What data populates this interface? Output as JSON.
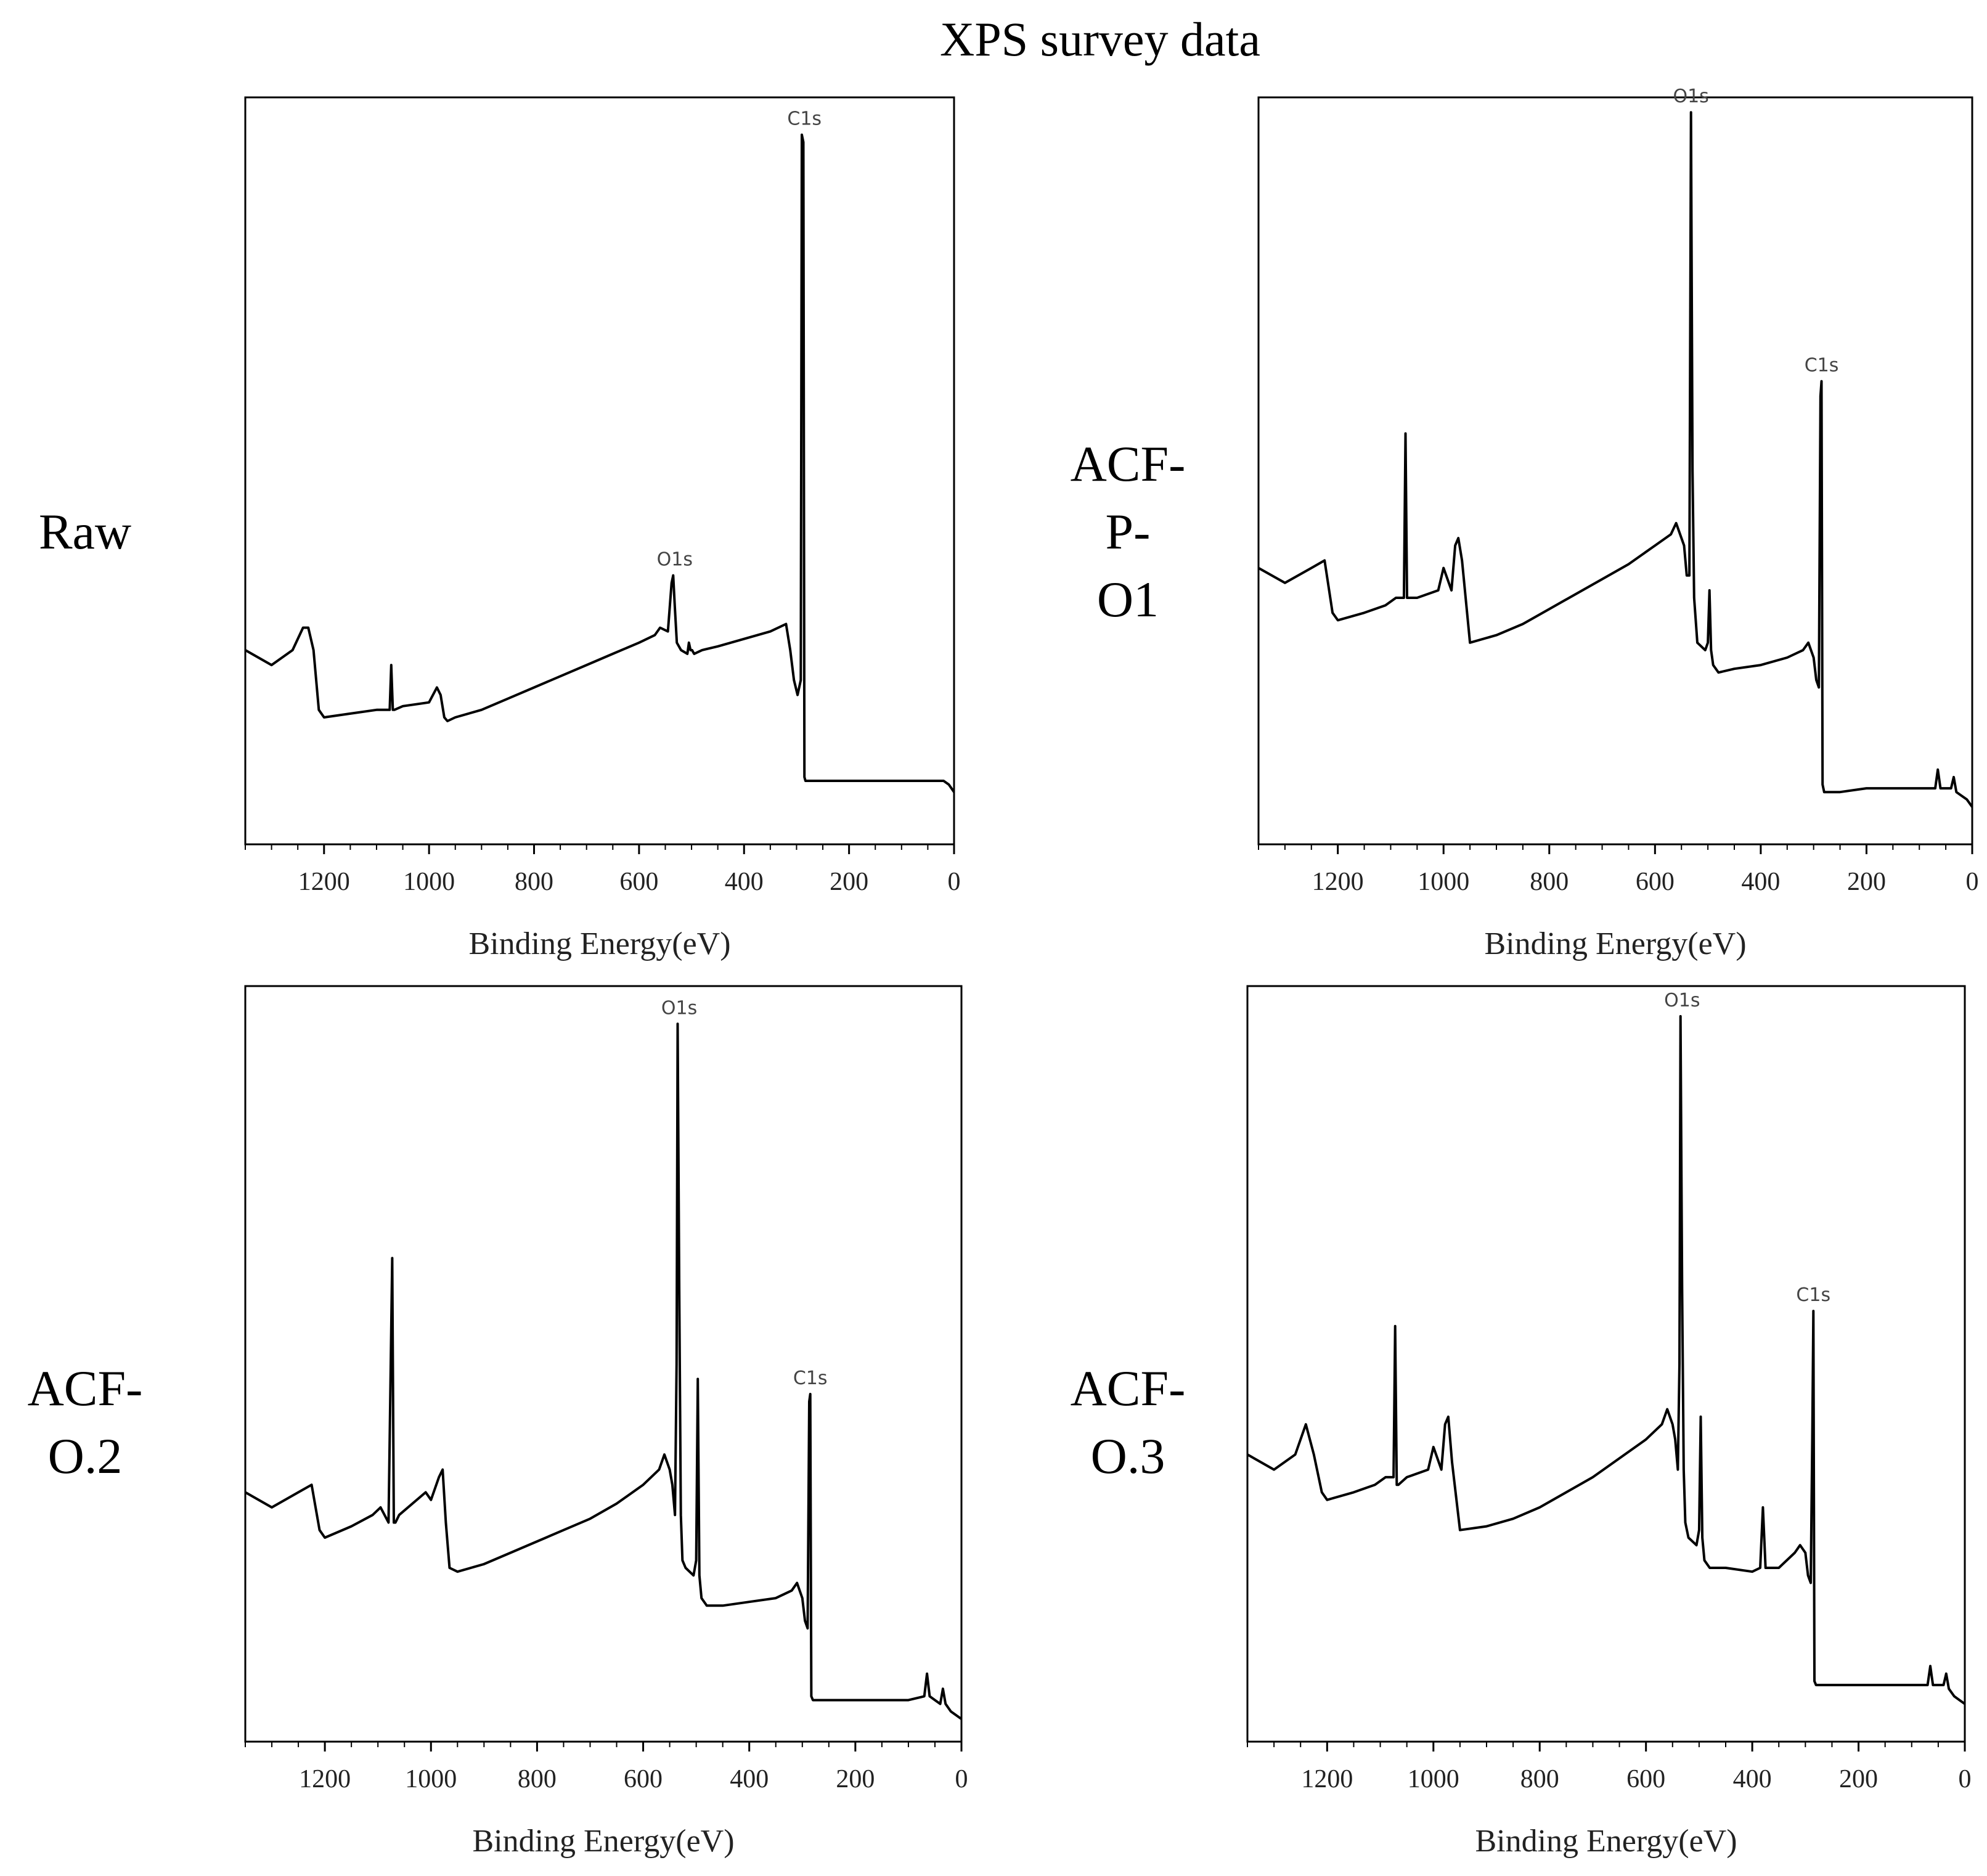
{
  "title": "XPS survey data",
  "chart_data": [
    {
      "type": "line",
      "sample_label": "Raw",
      "xlabel": "Binding Energy(eV)",
      "ylabel": "",
      "xlim": [
        1350,
        0
      ],
      "ylim": [
        0,
        100
      ],
      "x_ticks": [
        1200,
        1000,
        800,
        600,
        400,
        200,
        0
      ],
      "x": [
        1350,
        1300,
        1260,
        1240,
        1230,
        1220,
        1210,
        1200,
        1150,
        1100,
        1075,
        1072,
        1069,
        1066,
        1050,
        1000,
        985,
        978,
        971,
        965,
        950,
        900,
        850,
        800,
        750,
        700,
        650,
        600,
        570,
        560,
        545,
        538,
        535,
        532,
        528,
        520,
        508,
        505,
        502,
        499,
        495,
        480,
        450,
        400,
        350,
        320,
        312,
        305,
        298,
        292,
        290,
        287,
        285,
        283,
        282,
        279,
        270,
        250,
        200,
        150,
        100,
        50,
        20,
        10,
        0
      ],
      "series": [
        {
          "name": "Raw",
          "values": [
            26,
            24,
            26,
            29,
            29,
            26,
            18,
            17,
            17.5,
            18,
            18,
            24,
            18,
            18,
            18.5,
            19,
            21,
            20,
            17,
            16.5,
            17,
            18,
            19.5,
            21,
            22.5,
            24,
            25.5,
            27,
            28,
            29,
            28.5,
            35,
            36,
            32,
            27,
            26,
            25.5,
            27,
            26,
            26,
            25.5,
            26,
            26.5,
            27.5,
            28.5,
            29.5,
            26,
            22,
            20,
            22,
            95,
            94,
            9,
            8.5,
            8.5,
            8.5,
            8.5,
            8.5,
            8.5,
            8.5,
            8.5,
            8.5,
            8.5,
            8,
            7
          ]
        }
      ],
      "annotations": [
        {
          "text": "C1s",
          "x": 285,
          "y": 95
        },
        {
          "text": "O1s",
          "x": 532,
          "y": 36
        }
      ]
    },
    {
      "type": "line",
      "sample_label_lines": [
        "ACF-",
        "P-",
        "O1"
      ],
      "xlabel": "Binding Energy(eV)",
      "ylabel": "",
      "xlim": [
        1350,
        0
      ],
      "ylim": [
        0,
        100
      ],
      "x_ticks": [
        1200,
        1000,
        800,
        600,
        400,
        200,
        0
      ],
      "x": [
        1350,
        1300,
        1250,
        1225,
        1210,
        1200,
        1150,
        1110,
        1090,
        1075,
        1072,
        1069,
        1066,
        1050,
        1010,
        1000,
        985,
        978,
        972,
        965,
        950,
        900,
        850,
        800,
        750,
        700,
        650,
        600,
        570,
        560,
        550,
        545,
        540,
        535,
        532,
        529,
        526,
        520,
        505,
        500,
        497,
        494,
        490,
        480,
        450,
        400,
        350,
        320,
        310,
        300,
        295,
        290,
        287,
        285,
        283,
        280,
        250,
        200,
        150,
        100,
        70,
        65,
        60,
        50,
        40,
        35,
        30,
        20,
        10,
        0
      ],
      "series": [
        {
          "name": "ACF-P-O1",
          "values": [
            37,
            35,
            37,
            38,
            31,
            30,
            31,
            32,
            33,
            33,
            55,
            33,
            33,
            33,
            34,
            37,
            34,
            40,
            41,
            38,
            27,
            28,
            29.5,
            31.5,
            33.5,
            35.5,
            37.5,
            40,
            41.5,
            43,
            41,
            40,
            36,
            36,
            98,
            50,
            33,
            27,
            26,
            27,
            34,
            26,
            24,
            23,
            23.5,
            24,
            25,
            26,
            27,
            25,
            22,
            21,
            60,
            62,
            8,
            7,
            7,
            7.5,
            7.5,
            7.5,
            7.5,
            10,
            7.5,
            7.5,
            7.5,
            9,
            7,
            6.5,
            6,
            5
          ]
        }
      ],
      "annotations": [
        {
          "text": "O1s",
          "x": 532,
          "y": 98
        },
        {
          "text": "C1s",
          "x": 285,
          "y": 62
        }
      ]
    },
    {
      "type": "line",
      "sample_label_lines": [
        "ACF-",
        "O.2"
      ],
      "xlabel": "Binding Energy(eV)",
      "ylabel": "",
      "xlim": [
        1350,
        0
      ],
      "ylim": [
        0,
        100
      ],
      "x_ticks": [
        1200,
        1000,
        800,
        600,
        400,
        200,
        0
      ],
      "x": [
        1350,
        1300,
        1250,
        1225,
        1210,
        1200,
        1150,
        1110,
        1095,
        1080,
        1073,
        1070,
        1067,
        1060,
        1010,
        1000,
        985,
        978,
        972,
        965,
        950,
        900,
        850,
        800,
        750,
        700,
        650,
        600,
        570,
        560,
        550,
        545,
        540,
        537,
        535,
        532,
        529,
        526,
        520,
        505,
        500,
        497,
        494,
        490,
        480,
        450,
        400,
        350,
        320,
        310,
        300,
        295,
        290,
        287,
        285,
        283,
        280,
        250,
        200,
        150,
        100,
        70,
        65,
        60,
        50,
        40,
        35,
        30,
        20,
        10,
        0
      ],
      "series": [
        {
          "name": "ACF-O.2",
          "values": [
            33,
            31,
            33,
            34,
            28,
            27,
            28.5,
            30,
            31,
            29,
            64,
            29,
            29,
            30,
            33,
            32,
            35,
            36,
            29,
            23,
            22.5,
            23.5,
            25,
            26.5,
            28,
            29.5,
            31.5,
            34,
            36,
            38,
            36,
            34,
            30,
            50,
            95,
            60,
            30,
            24,
            23,
            22,
            24,
            48,
            22,
            19,
            18,
            18,
            18.5,
            19,
            20,
            21,
            19,
            16,
            15,
            45,
            46,
            6,
            5.5,
            5.5,
            5.5,
            5.5,
            5.5,
            6,
            9,
            6,
            5.5,
            5,
            7,
            5,
            4,
            3.5,
            3
          ]
        }
      ],
      "annotations": [
        {
          "text": "O1s",
          "x": 532,
          "y": 95
        },
        {
          "text": "C1s",
          "x": 285,
          "y": 46
        }
      ]
    },
    {
      "type": "line",
      "sample_label_lines": [
        "ACF-",
        "O.3"
      ],
      "xlabel": "Binding Energy(eV)",
      "ylabel": "",
      "xlim": [
        1350,
        0
      ],
      "ylim": [
        0,
        100
      ],
      "x_ticks": [
        1200,
        1000,
        800,
        600,
        400,
        200,
        0
      ],
      "x": [
        1350,
        1300,
        1260,
        1240,
        1225,
        1210,
        1200,
        1150,
        1110,
        1090,
        1075,
        1072,
        1069,
        1066,
        1050,
        1010,
        1000,
        985,
        978,
        972,
        965,
        950,
        900,
        850,
        800,
        750,
        700,
        650,
        600,
        570,
        560,
        550,
        545,
        540,
        537,
        535,
        532,
        529,
        526,
        520,
        505,
        500,
        497,
        494,
        490,
        480,
        450,
        400,
        385,
        380,
        375,
        350,
        320,
        310,
        300,
        295,
        290,
        287,
        285,
        283,
        280,
        250,
        200,
        150,
        100,
        70,
        65,
        60,
        50,
        40,
        35,
        30,
        20,
        10,
        0
      ],
      "series": [
        {
          "name": "ACF-O.3",
          "values": [
            38,
            36,
            38,
            42,
            38,
            33,
            32,
            33,
            34,
            35,
            35,
            55,
            34,
            34,
            35,
            36,
            39,
            36,
            42,
            43,
            37,
            28,
            28.5,
            29.5,
            31,
            33,
            35,
            37.5,
            40,
            42,
            44,
            42,
            40,
            36,
            50,
            96,
            60,
            36,
            29,
            27,
            26,
            28,
            43,
            27,
            24,
            23,
            23,
            22.5,
            23,
            31,
            23,
            23,
            25,
            26,
            25,
            22,
            21,
            40,
            57,
            8,
            7.5,
            7.5,
            7.5,
            7.5,
            7.5,
            7.5,
            10,
            7.5,
            7.5,
            7.5,
            9,
            7,
            6,
            5.5,
            5
          ]
        }
      ],
      "annotations": [
        {
          "text": "O1s",
          "x": 532,
          "y": 96
        },
        {
          "text": "C1s",
          "x": 285,
          "y": 57
        }
      ]
    }
  ]
}
